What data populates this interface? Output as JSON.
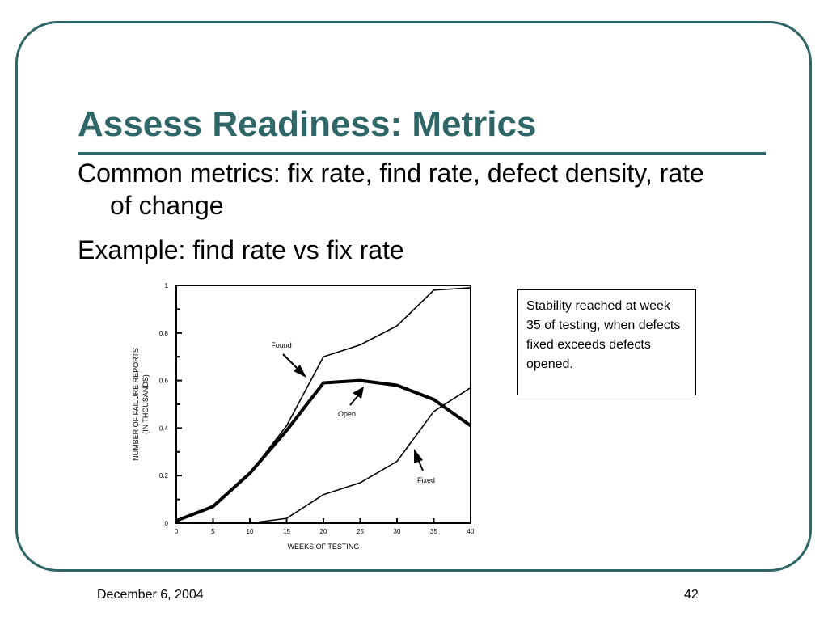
{
  "slide": {
    "title": "Assess Readiness: Metrics",
    "bullets": [
      "Common metrics: fix rate, find rate, defect density, rate of change",
      "Example: find rate vs fix rate"
    ],
    "callout": "Stability reached at week 35 of testing, when defects fixed exceeds defects opened.",
    "footer_date": "December 6, 2004",
    "page_number": "42",
    "colors": {
      "accent": "#2f6667",
      "text": "#000000"
    }
  },
  "chart_data": {
    "type": "line",
    "title": "",
    "xlabel": "WEEKS OF TESTING",
    "ylabel": [
      "NUMBER OF FAILURE REPORTS",
      "(IN THOUSANDS)"
    ],
    "xlim": [
      0,
      40
    ],
    "ylim": [
      0,
      1
    ],
    "x_ticks": [
      0,
      5,
      10,
      15,
      20,
      25,
      30,
      35,
      40
    ],
    "x_tick_labels": [
      "0",
      "5",
      "10",
      "15",
      "20",
      "25",
      "30",
      "35",
      "40"
    ],
    "y_ticks": [
      0,
      0.2,
      0.4,
      0.6,
      0.8,
      1
    ],
    "y_tick_labels": [
      "0",
      "0.2",
      "0.4",
      "0.6",
      "0.8",
      "1"
    ],
    "grid": false,
    "x": [
      0,
      5,
      10,
      15,
      20,
      25,
      30,
      35,
      40
    ],
    "series": [
      {
        "name": "Found",
        "values": [
          0.01,
          0.07,
          0.21,
          0.41,
          0.7,
          0.75,
          0.83,
          0.98,
          0.99
        ],
        "style": "thin"
      },
      {
        "name": "Open",
        "values": [
          0.01,
          0.07,
          0.21,
          0.39,
          0.59,
          0.6,
          0.58,
          0.52,
          0.41
        ],
        "style": "thick"
      },
      {
        "name": "Fixed",
        "values": [
          0.0,
          0.0,
          0.0,
          0.02,
          0.12,
          0.17,
          0.26,
          0.47,
          0.57
        ],
        "style": "thin"
      }
    ],
    "annotations": [
      {
        "text": "Found",
        "series": "Found"
      },
      {
        "text": "Open",
        "series": "Open"
      },
      {
        "text": "Fixed",
        "series": "Fixed"
      }
    ]
  }
}
